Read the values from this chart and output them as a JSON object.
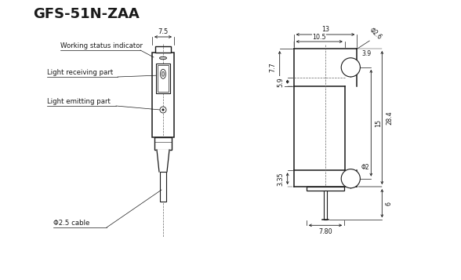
{
  "title": "GFS-51N-ZAA",
  "bg_color": "#ffffff",
  "line_color": "#1a1a1a",
  "labels": {
    "working_status": "Working status indicator",
    "light_receiving": "Light receiving part",
    "light_emitting": "Light emitting part",
    "cable": "Φ2.5 cable"
  },
  "dims_left": {
    "width": "7.5"
  },
  "dims_right": {
    "width_outer": "13",
    "width_inner": "10.5",
    "phi26": "Φ2.6",
    "h77": "7.7",
    "h59": "5.9",
    "h335": "3.35",
    "h15": "15",
    "h284": "28.4",
    "h6": "6",
    "w780": "7.80",
    "d39": "3.9",
    "dphi2": "Φ2"
  }
}
